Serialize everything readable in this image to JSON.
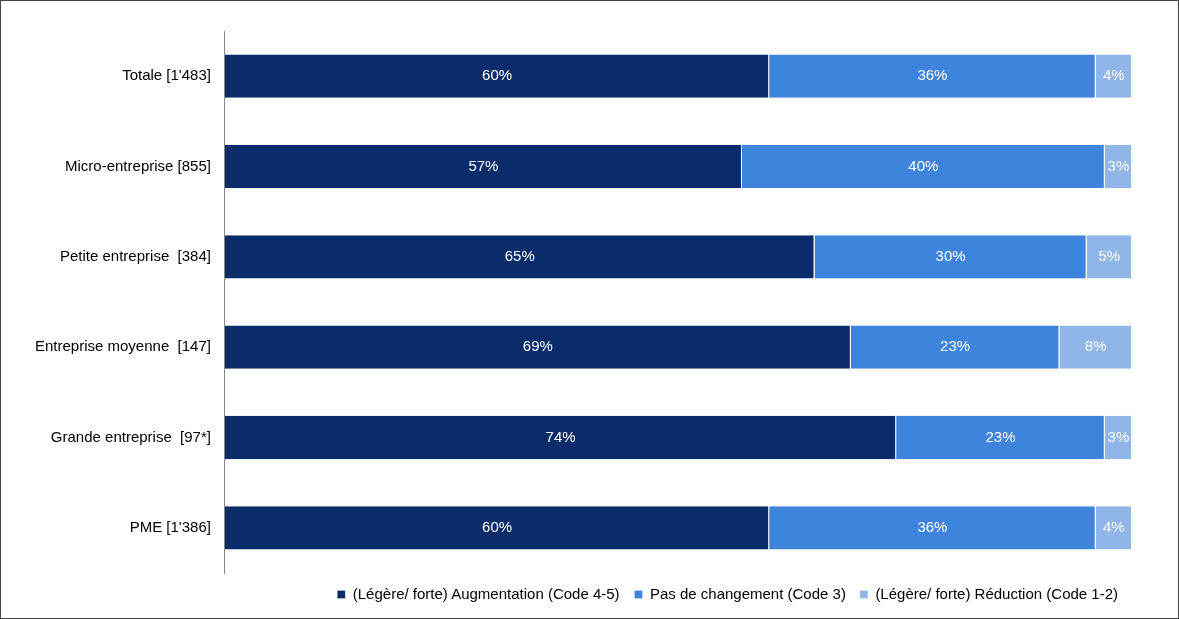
{
  "chart_data": {
    "type": "bar",
    "orientation": "horizontal",
    "stacked": true,
    "categories": [
      "Totale [1'483]",
      "Micro-entreprise [855]",
      "Petite entreprise  [384]",
      "Entreprise moyenne  [147]",
      "Grande entreprise  [97*]",
      "PME [1'386]"
    ],
    "series": [
      {
        "name": "(Légère/ forte) Augmentation (Code 4-5)",
        "color": "#0b2c6b",
        "values": [
          60,
          57,
          65,
          69,
          74,
          60
        ],
        "value_labels": [
          "60%",
          "57%",
          "65%",
          "69%",
          "74%",
          "60%"
        ]
      },
      {
        "name": "Pas de changement (Code 3)",
        "color": "#3f84dc",
        "values": [
          36,
          40,
          30,
          23,
          23,
          36
        ],
        "value_labels": [
          "36%",
          "40%",
          "30%",
          "23%",
          "23%",
          "36%"
        ]
      },
      {
        "name": "(Légère/ forte) Réduction (Code 1-2)",
        "color": "#8fb5e9",
        "values": [
          4,
          3,
          5,
          8,
          3,
          4
        ],
        "value_labels": [
          "4%",
          "3%",
          "5%",
          "8%",
          "3%",
          "4%"
        ]
      }
    ],
    "tick_labels": "y",
    "legend": "bottom"
  }
}
